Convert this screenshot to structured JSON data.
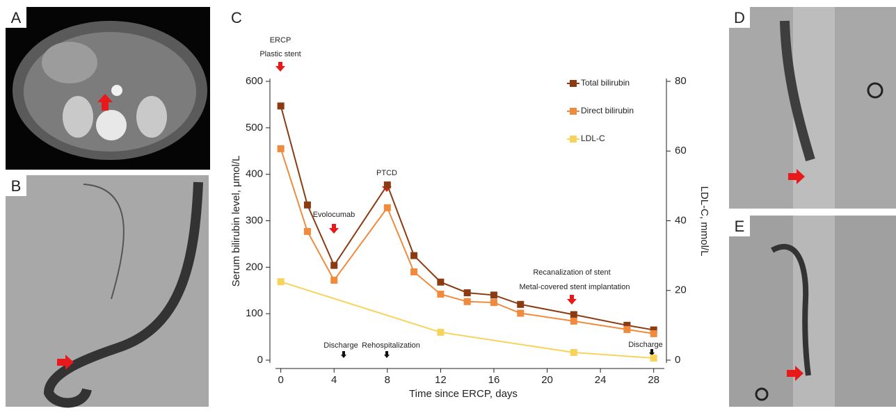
{
  "panels": [
    "A",
    "B",
    "C",
    "D",
    "E"
  ],
  "chart_data": {
    "type": "line",
    "xlabel": "Time since ERCP, days",
    "ylabel": "Serum bilirubin level, μmol/L",
    "y2label": "LDL-C, mmol/L",
    "xlim": [
      -0.4,
      28.8
    ],
    "xticks": [
      0,
      4,
      8,
      12,
      16,
      20,
      24,
      28
    ],
    "ylim": [
      0,
      600
    ],
    "yticks": [
      0,
      100,
      200,
      300,
      400,
      500,
      600
    ],
    "y2lim": [
      0,
      80
    ],
    "y2ticks": [
      0,
      20,
      40,
      60,
      80
    ],
    "legend": "top-right",
    "annotations": [
      "ERCP",
      "Plastic stent",
      "Evolocumab",
      "PTCD",
      "Recanalization of stent",
      "Metal-covered stent implantation",
      "Discharge",
      "Rehospitalization",
      "Discharge"
    ],
    "series": [
      {
        "name": "Total bilirubin",
        "color": "#8b3a12",
        "x": [
          0,
          2,
          4,
          8,
          10,
          12,
          14,
          16,
          18,
          22,
          26,
          28
        ],
        "values": [
          547,
          334,
          204,
          377,
          225,
          168,
          145,
          140,
          120,
          98,
          75,
          65
        ]
      },
      {
        "name": "Direct bilirubin",
        "color": "#f08a3c",
        "x": [
          0,
          2,
          4,
          8,
          10,
          12,
          14,
          16,
          18,
          22,
          26,
          28
        ],
        "values": [
          455,
          277,
          172,
          328,
          190,
          142,
          126,
          124,
          101,
          84,
          66,
          57
        ]
      },
      {
        "name": "LDL-C",
        "color": "#f8d35c",
        "axis": "y2",
        "x": [
          0,
          12,
          22,
          28
        ],
        "values": [
          22.5,
          8,
          2.2,
          0.6
        ]
      }
    ]
  }
}
